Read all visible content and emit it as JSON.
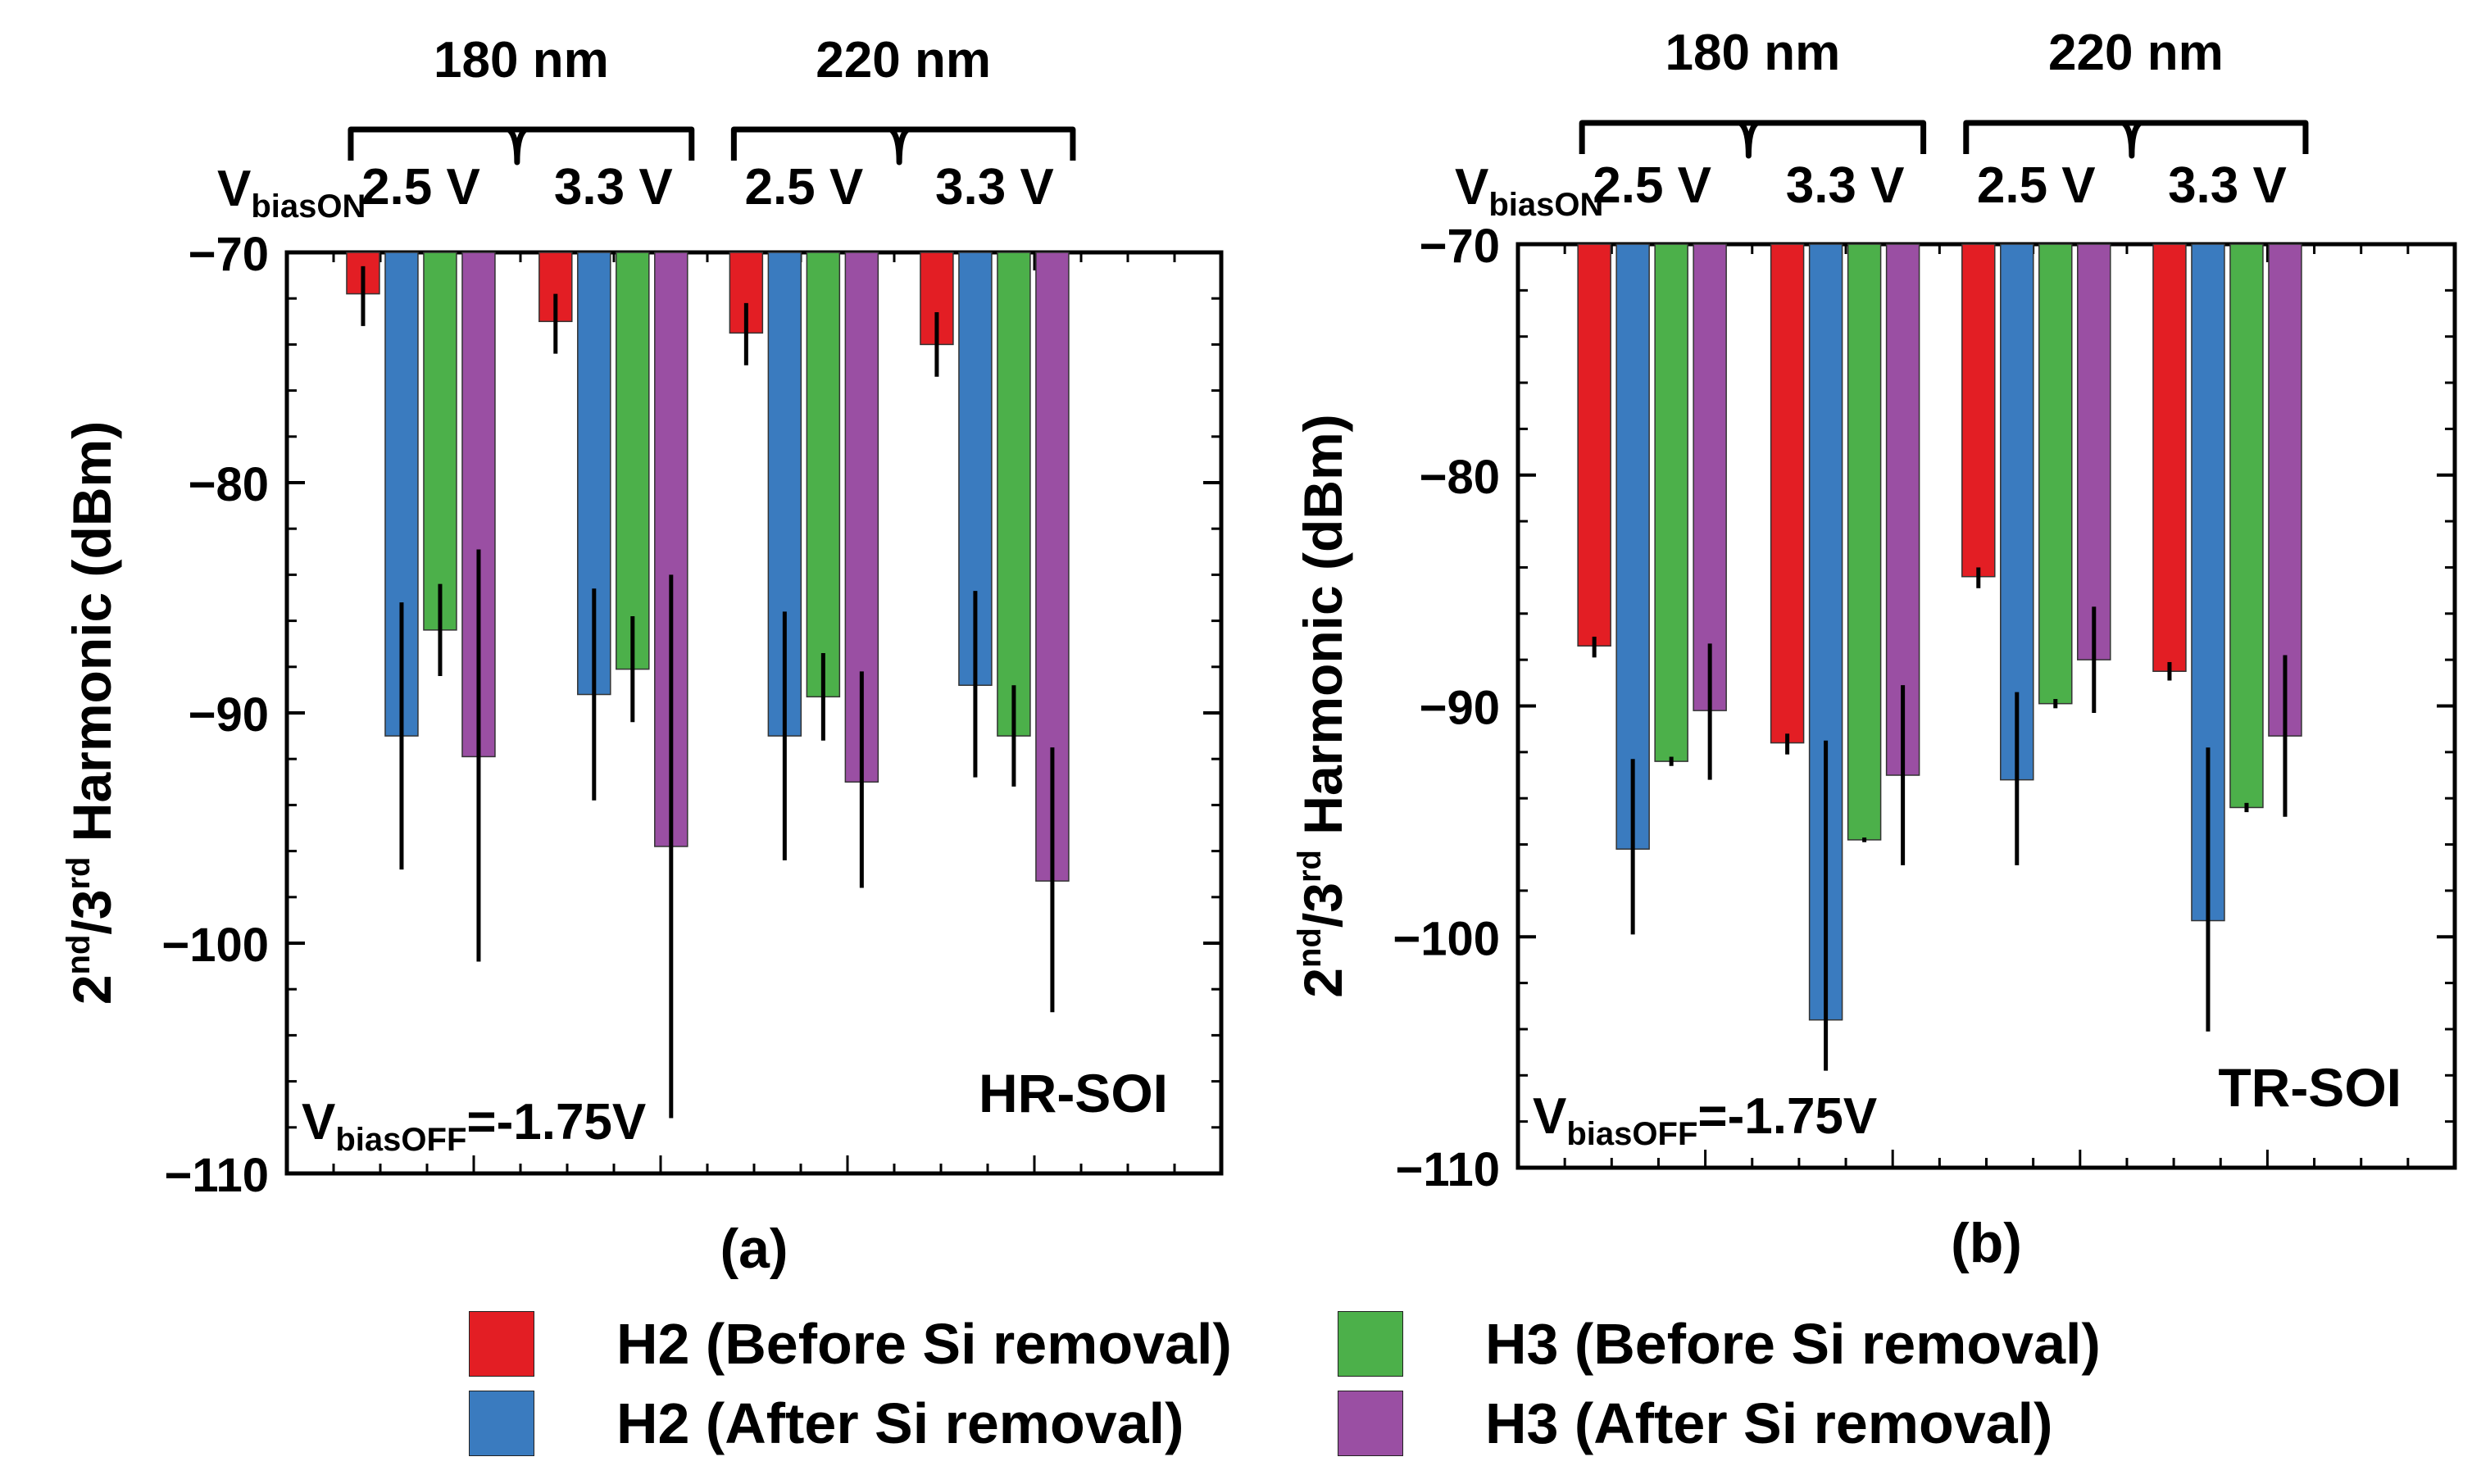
{
  "figure": {
    "colors": {
      "h2_before": "#e31e24",
      "h2_after": "#3a7bbf",
      "h3_before": "#4cb04a",
      "h3_after": "#9a4fa3"
    },
    "legend": [
      {
        "key": "h2_before",
        "label": "H2 (Before Si removal)"
      },
      {
        "key": "h2_after",
        "label": "H2  (After Si removal)"
      },
      {
        "key": "h3_before",
        "label": "H3 (Before Si removal)"
      },
      {
        "key": "h3_after",
        "label": "H3  (After Si removal)"
      }
    ]
  },
  "chart_data": [
    {
      "type": "bar",
      "panel_label": "(a)",
      "annotation_left_main": "V",
      "annotation_left_sub": "biasOFF",
      "annotation_left_rest": "=-1.75V",
      "annotation_right": "HR-SOI",
      "ylabel_main": "2",
      "ylabel_sup1": "nd",
      "ylabel_mid": "/3",
      "ylabel_sup2": "rd",
      "ylabel_rest": " Harmonic (dBm)",
      "ylim": [
        -110,
        -70
      ],
      "yticks": [
        "-70",
        "-80",
        "-90",
        "-100",
        "-110"
      ],
      "bias_label_main": "V",
      "bias_label_sub": "biasON",
      "node_labels": [
        "180 nm",
        "220 nm"
      ],
      "voltage_labels": [
        "2.5 V",
        "3.3 V",
        "2.5 V",
        "3.3 V"
      ],
      "series_keys": [
        "h2_before",
        "h2_after",
        "h3_before",
        "h3_after"
      ],
      "groups": [
        {
          "node": "180 nm",
          "voltage": "2.5 V",
          "values": [
            -71.8,
            -91.0,
            -86.4,
            -91.9
          ],
          "err_low": [
            -73.2,
            -96.8,
            -88.4,
            -100.8
          ],
          "err_high": [
            -70.6,
            -85.2,
            -84.4,
            -82.9
          ]
        },
        {
          "node": "180 nm",
          "voltage": "3.3 V",
          "values": [
            -73.0,
            -89.2,
            -88.1,
            -95.8
          ],
          "err_low": [
            -74.4,
            -93.8,
            -90.4,
            -107.6
          ],
          "err_high": [
            -71.8,
            -84.6,
            -85.8,
            -84.0
          ]
        },
        {
          "node": "220 nm",
          "voltage": "2.5 V",
          "values": [
            -73.5,
            -91.0,
            -89.3,
            -93.0
          ],
          "err_low": [
            -74.9,
            -96.4,
            -91.2,
            -97.6
          ],
          "err_high": [
            -72.2,
            -85.6,
            -87.4,
            -88.2
          ]
        },
        {
          "node": "220 nm",
          "voltage": "3.3 V",
          "values": [
            -74.0,
            -88.8,
            -91.0,
            -97.3
          ],
          "err_low": [
            -75.4,
            -92.8,
            -93.2,
            -103.0
          ],
          "err_high": [
            -72.6,
            -84.7,
            -88.8,
            -91.5
          ]
        }
      ]
    },
    {
      "type": "bar",
      "panel_label": "(b)",
      "annotation_left_main": "V",
      "annotation_left_sub": "biasOFF",
      "annotation_left_rest": "=-1.75V",
      "annotation_right": "TR-SOI",
      "ylabel_main": "2",
      "ylabel_sup1": "nd",
      "ylabel_mid": "/3",
      "ylabel_sup2": "rd",
      "ylabel_rest": " Harmonic (dBm)",
      "ylim": [
        -110,
        -70
      ],
      "yticks": [
        "-70",
        "-80",
        "-90",
        "-100",
        "-110"
      ],
      "bias_label_main": "V",
      "bias_label_sub": "biasON",
      "node_labels": [
        "180 nm",
        "220 nm"
      ],
      "voltage_labels": [
        "2.5 V",
        "3.3 V",
        "2.5 V",
        "3.3 V"
      ],
      "series_keys": [
        "h2_before",
        "h2_after",
        "h3_before",
        "h3_after"
      ],
      "groups": [
        {
          "node": "180 nm",
          "voltage": "2.5 V",
          "values": [
            -87.4,
            -96.2,
            -92.4,
            -90.2
          ],
          "err_low": [
            -87.9,
            -99.9,
            -92.6,
            -93.2
          ],
          "err_high": [
            -87.0,
            -92.3,
            -92.2,
            -87.3
          ]
        },
        {
          "node": "180 nm",
          "voltage": "3.3 V",
          "values": [
            -91.6,
            -103.6,
            -95.8,
            -93.0
          ],
          "err_low": [
            -92.1,
            -105.8,
            -95.9,
            -96.9
          ],
          "err_high": [
            -91.2,
            -91.5,
            -95.7,
            -89.1
          ]
        },
        {
          "node": "220 nm",
          "voltage": "2.5 V",
          "values": [
            -84.4,
            -93.2,
            -89.9,
            -88.0
          ],
          "err_low": [
            -84.9,
            -96.9,
            -90.1,
            -90.3
          ],
          "err_high": [
            -84.0,
            -89.4,
            -89.7,
            -85.7
          ]
        },
        {
          "node": "220 nm",
          "voltage": "3.3 V",
          "values": [
            -88.5,
            -99.3,
            -94.4,
            -91.3
          ],
          "err_low": [
            -88.9,
            -104.1,
            -94.6,
            -94.8
          ],
          "err_high": [
            -88.1,
            -91.8,
            -94.2,
            -87.8
          ]
        }
      ]
    }
  ]
}
